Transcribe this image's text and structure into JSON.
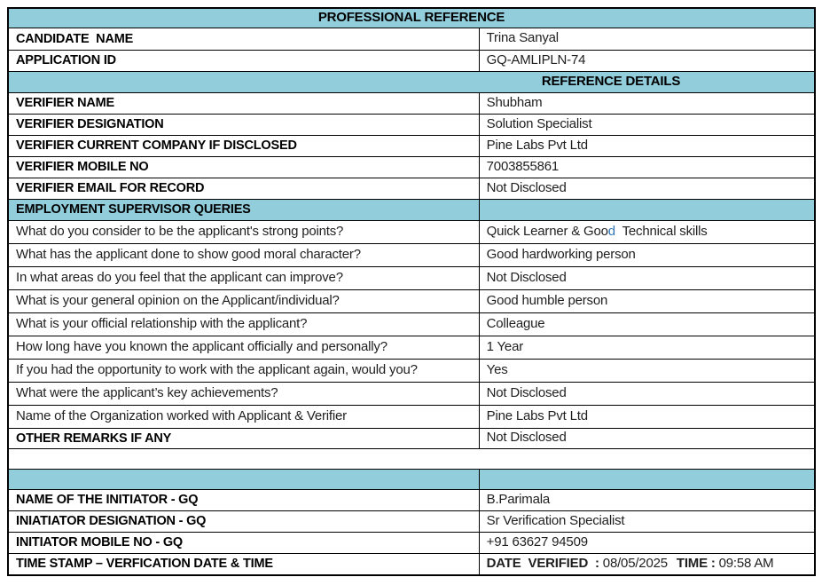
{
  "colors": {
    "section_header_bg": "#92CDDC",
    "table_border": "#000000",
    "accent_letter_color": "#2E74B5"
  },
  "title": "PROFESSIONAL REFERENCE",
  "candidate_name": {
    "label": "CANDIDATE  NAME",
    "value": "Trina Sanyal"
  },
  "application_id": {
    "label": "APPLICATION ID",
    "value": "GQ-AMLIPLN-74"
  },
  "reference_details_title": "REFERENCE DETAILS",
  "verifier_fields": [
    {
      "label": "VERIFIER NAME",
      "value": "Shubham"
    },
    {
      "label": "VERIFIER DESIGNATION",
      "value": "Solution Specialist"
    },
    {
      "label": "VERIFIER CURRENT COMPANY IF DISCLOSED",
      "value": "Pine Labs Pvt Ltd"
    },
    {
      "label": "VERIFIER MOBILE NO",
      "value": "7003855861"
    },
    {
      "label": "VERIFIER EMAIL FOR RECORD",
      "value": "Not Disclosed"
    }
  ],
  "supervisor_queries_title": "EMPLOYMENT SUPERVISOR QUERIES",
  "queries": [
    {
      "question": "What do you consider to be the applicant's strong points?",
      "answer_part1": "Quick Learner & Goo",
      "answer_accent": "d",
      "answer_part2": "  Technical skills"
    },
    {
      "question": "What has the applicant done to show good moral character?",
      "answer": "Good hardworking person"
    },
    {
      "question": "In what areas do you feel that the applicant can improve?",
      "answer": "Not Disclosed"
    },
    {
      "question": "What is your general opinion on the Applicant/individual?",
      "answer": "Good humble person"
    },
    {
      "question": "What is your official relationship with the applicant?",
      "answer": "Colleague"
    },
    {
      "question": "How long have you known the applicant officially and personally?",
      "answer": "1 Year"
    },
    {
      "question": "If you had the opportunity to work with the applicant again, would you?",
      "answer": "Yes"
    },
    {
      "question": "What were the applicant’s key achievements?",
      "answer": "Not Disclosed"
    },
    {
      "question": "Name of the Organization worked with Applicant & Verifier",
      "answer": "Pine Labs Pvt Ltd"
    }
  ],
  "other_remarks": {
    "label": "OTHER REMARKS IF ANY",
    "value": "Not Disclosed"
  },
  "initiator_fields": [
    {
      "label": "NAME OF THE INITIATOR - GQ",
      "value": "B.Parimala"
    },
    {
      "label": "INIATIATOR DESIGNATION - GQ",
      "value": "Sr Verification Specialist"
    },
    {
      "label": "INITIATOR MOBILE NO - GQ",
      "value": "+91 63627 94509"
    }
  ],
  "timestamp": {
    "label": "TIME STAMP – VERFICATION DATE & TIME",
    "date_label": "DATE  VERIFIED  :",
    "date_value": " 08/05/2025",
    "time_label": "TIME :",
    "time_value": " 09:58 AM"
  }
}
